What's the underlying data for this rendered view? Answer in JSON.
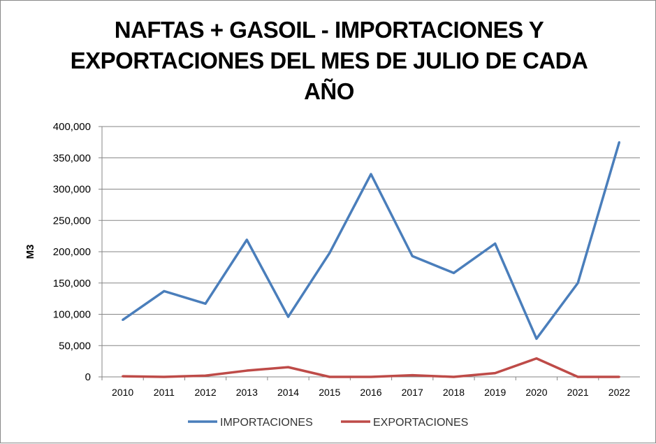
{
  "chart_data": {
    "type": "line",
    "title_lines": [
      "NAFTAS + GASOIL - IMPORTACIONES Y",
      "EXPORTACIONES DEL MES DE JULIO DE CADA",
      "AÑO"
    ],
    "xlabel": "",
    "ylabel": "M3",
    "ylim": [
      0,
      400000
    ],
    "yticks": [
      0,
      50000,
      100000,
      150000,
      200000,
      250000,
      300000,
      350000,
      400000
    ],
    "ytick_labels": [
      "0",
      "50,000",
      "100,000",
      "150,000",
      "200,000",
      "250,000",
      "300,000",
      "350,000",
      "400,000"
    ],
    "categories": [
      "2010",
      "2011",
      "2012",
      "2013",
      "2014",
      "2015",
      "2016",
      "2017",
      "2018",
      "2019",
      "2020",
      "2021",
      "2022"
    ],
    "grid": true,
    "legend_position": "bottom",
    "series": [
      {
        "name": "IMPORTACIONES",
        "color": "#4a7ebb",
        "values": [
          91000,
          137000,
          117000,
          219000,
          96000,
          198000,
          324000,
          193000,
          166000,
          213000,
          61000,
          150000,
          375000
        ]
      },
      {
        "name": "EXPORTACIONES",
        "color": "#be4b48",
        "values": [
          1000,
          0,
          2000,
          10000,
          15500,
          0,
          0,
          2600,
          0,
          6000,
          29500,
          0,
          0
        ]
      }
    ]
  }
}
